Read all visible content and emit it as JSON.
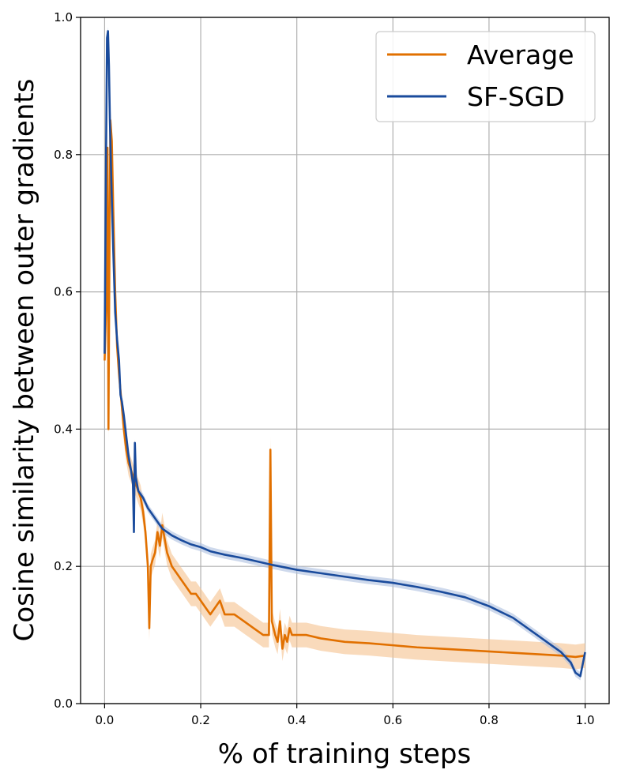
{
  "chart_data": {
    "type": "line",
    "xlabel": "% of training steps",
    "ylabel": "Cosine similarity between outer gradients",
    "xlim": [
      -0.05,
      1.05
    ],
    "ylim": [
      0.0,
      1.0
    ],
    "x_ticks": [
      "0.0",
      "0.2",
      "0.4",
      "0.6",
      "0.8",
      "1.0"
    ],
    "y_ticks": [
      "0.0",
      "0.2",
      "0.4",
      "0.6",
      "0.8",
      "1.0"
    ],
    "grid": true,
    "legend_position": "top-right",
    "series": [
      {
        "name": "Average",
        "color": "#e17000",
        "band_color": "#f5c28e",
        "x": [
          0.0,
          0.004,
          0.006,
          0.008,
          0.01,
          0.012,
          0.015,
          0.018,
          0.022,
          0.026,
          0.03,
          0.035,
          0.04,
          0.045,
          0.05,
          0.055,
          0.06,
          0.065,
          0.07,
          0.075,
          0.08,
          0.085,
          0.09,
          0.093,
          0.096,
          0.1,
          0.105,
          0.11,
          0.115,
          0.12,
          0.125,
          0.13,
          0.14,
          0.15,
          0.16,
          0.17,
          0.18,
          0.19,
          0.2,
          0.21,
          0.22,
          0.23,
          0.24,
          0.25,
          0.27,
          0.29,
          0.31,
          0.33,
          0.342,
          0.345,
          0.348,
          0.355,
          0.36,
          0.365,
          0.37,
          0.375,
          0.38,
          0.385,
          0.39,
          0.4,
          0.42,
          0.45,
          0.5,
          0.55,
          0.6,
          0.65,
          0.7,
          0.75,
          0.8,
          0.85,
          0.9,
          0.95,
          0.98,
          1.0
        ],
        "y": [
          0.5,
          0.6,
          0.81,
          0.4,
          0.65,
          0.85,
          0.82,
          0.72,
          0.6,
          0.52,
          0.48,
          0.44,
          0.4,
          0.37,
          0.35,
          0.34,
          0.33,
          0.32,
          0.31,
          0.3,
          0.28,
          0.25,
          0.2,
          0.11,
          0.2,
          0.21,
          0.22,
          0.25,
          0.23,
          0.26,
          0.24,
          0.22,
          0.2,
          0.19,
          0.18,
          0.17,
          0.16,
          0.16,
          0.15,
          0.14,
          0.13,
          0.14,
          0.15,
          0.13,
          0.13,
          0.12,
          0.11,
          0.1,
          0.1,
          0.37,
          0.12,
          0.1,
          0.09,
          0.12,
          0.08,
          0.1,
          0.09,
          0.11,
          0.1,
          0.1,
          0.1,
          0.095,
          0.09,
          0.088,
          0.085,
          0.082,
          0.08,
          0.078,
          0.076,
          0.074,
          0.072,
          0.07,
          0.068,
          0.07
        ]
      },
      {
        "name": "SF-SGD",
        "color": "#1a4b9c",
        "band_color": "#aebfe0",
        "x": [
          0.0,
          0.003,
          0.005,
          0.007,
          0.009,
          0.011,
          0.014,
          0.018,
          0.022,
          0.026,
          0.03,
          0.033,
          0.036,
          0.04,
          0.045,
          0.05,
          0.055,
          0.059,
          0.061,
          0.063,
          0.065,
          0.07,
          0.08,
          0.09,
          0.1,
          0.11,
          0.12,
          0.14,
          0.16,
          0.18,
          0.2,
          0.22,
          0.25,
          0.28,
          0.3,
          0.35,
          0.4,
          0.45,
          0.5,
          0.55,
          0.6,
          0.65,
          0.7,
          0.75,
          0.8,
          0.85,
          0.9,
          0.93,
          0.95,
          0.97,
          0.98,
          0.99,
          1.0
        ],
        "y": [
          0.51,
          0.8,
          0.97,
          0.98,
          0.93,
          0.85,
          0.76,
          0.66,
          0.57,
          0.53,
          0.5,
          0.45,
          0.44,
          0.42,
          0.39,
          0.36,
          0.34,
          0.32,
          0.25,
          0.38,
          0.33,
          0.31,
          0.3,
          0.285,
          0.275,
          0.265,
          0.255,
          0.245,
          0.238,
          0.232,
          0.228,
          0.222,
          0.217,
          0.213,
          0.21,
          0.202,
          0.195,
          0.19,
          0.185,
          0.18,
          0.176,
          0.17,
          0.163,
          0.155,
          0.142,
          0.125,
          0.1,
          0.085,
          0.075,
          0.06,
          0.045,
          0.04,
          0.075
        ]
      }
    ]
  }
}
